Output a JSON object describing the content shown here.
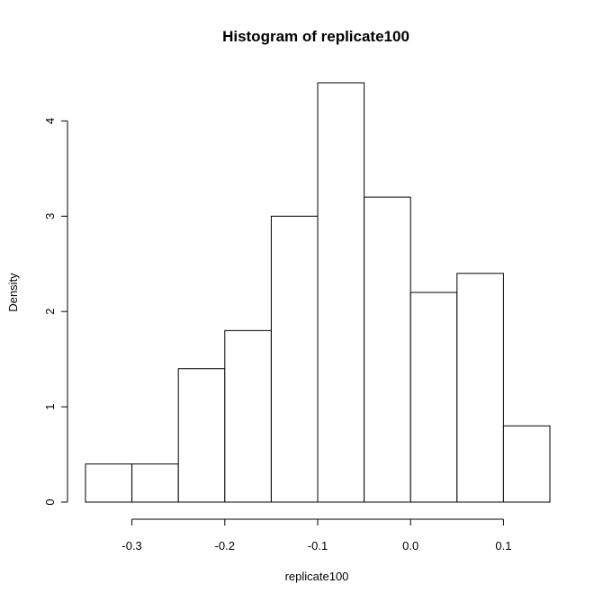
{
  "chart_data": {
    "type": "bar",
    "subtype": "histogram",
    "title": "Histogram of replicate100",
    "xlabel": "replicate100",
    "ylabel": "Density",
    "bins": [
      {
        "x0": -0.35,
        "x1": -0.3,
        "density": 0.4
      },
      {
        "x0": -0.3,
        "x1": -0.25,
        "density": 0.4
      },
      {
        "x0": -0.25,
        "x1": -0.2,
        "density": 1.4
      },
      {
        "x0": -0.2,
        "x1": -0.15,
        "density": 1.8
      },
      {
        "x0": -0.15,
        "x1": -0.1,
        "density": 3.0
      },
      {
        "x0": -0.1,
        "x1": -0.05,
        "density": 4.4
      },
      {
        "x0": -0.05,
        "x1": 0.0,
        "density": 3.2
      },
      {
        "x0": 0.0,
        "x1": 0.05,
        "density": 2.2
      },
      {
        "x0": 0.05,
        "x1": 0.1,
        "density": 2.4
      },
      {
        "x0": 0.1,
        "x1": 0.15,
        "density": 0.8
      }
    ],
    "xticks": [
      {
        "value": -0.3,
        "label": "-0.3"
      },
      {
        "value": -0.2,
        "label": "-0.2"
      },
      {
        "value": -0.1,
        "label": "-0.1"
      },
      {
        "value": 0.0,
        "label": "0.0"
      },
      {
        "value": 0.1,
        "label": "0.1"
      }
    ],
    "yticks": [
      {
        "value": 0,
        "label": "0"
      },
      {
        "value": 1,
        "label": "1"
      },
      {
        "value": 2,
        "label": "2"
      },
      {
        "value": 3,
        "label": "3"
      },
      {
        "value": 4,
        "label": "4"
      }
    ],
    "xlim": [
      -0.35,
      0.15
    ],
    "ylim": [
      0,
      4.4
    ],
    "grid": false,
    "legend": "none"
  }
}
